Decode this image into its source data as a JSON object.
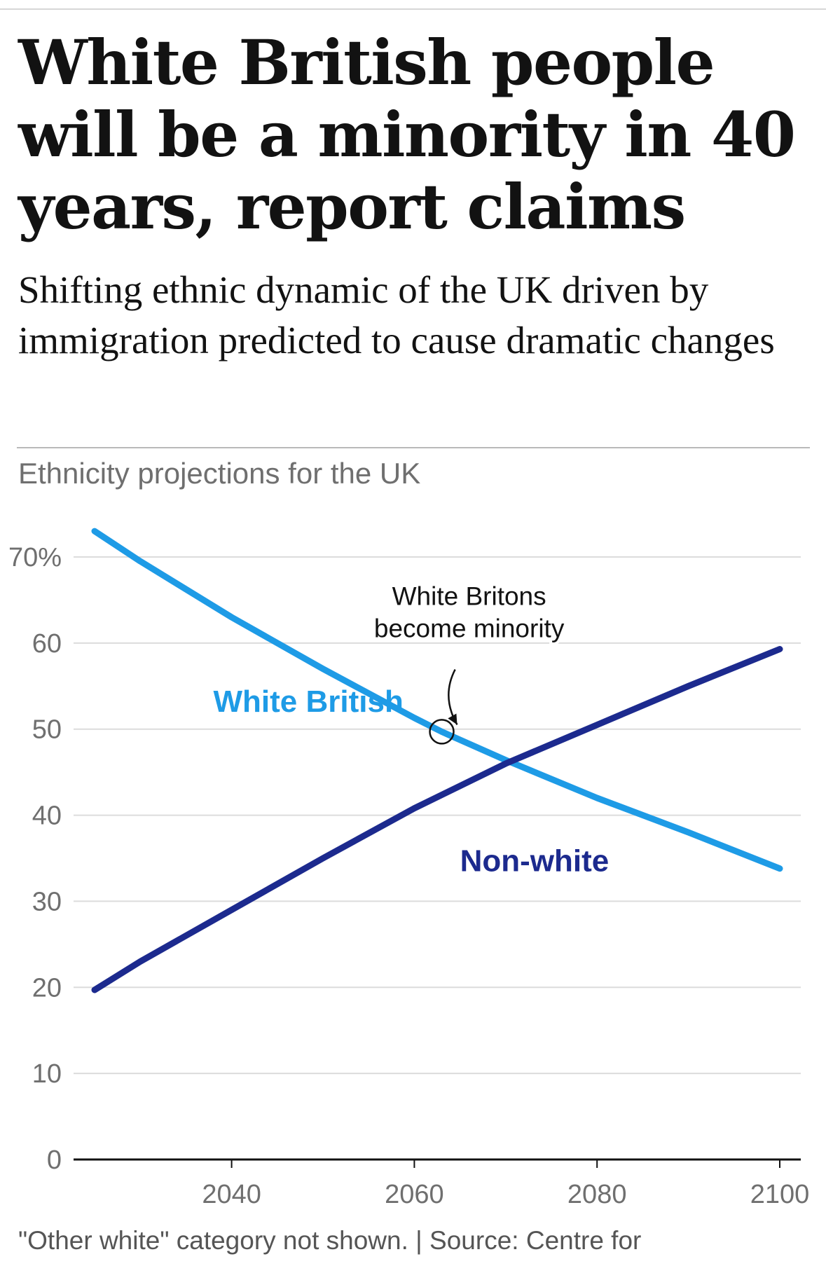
{
  "headline": "White British people will be a minority in 40 years, report claims",
  "standfirst": "Shifting ethnic dynamic of the UK driven by immigration predicted to cause dramatic changes",
  "chart_heading": "Ethnicity projections for the UK",
  "footnote": "\"Other white\" category not shown. | Source: Centre for",
  "chart_data": {
    "type": "line",
    "xlim": [
      2025,
      2100
    ],
    "ylim": [
      0,
      70
    ],
    "grid": true,
    "x_ticks": [
      {
        "value": 2040,
        "label": "2040"
      },
      {
        "value": 2060,
        "label": "2060"
      },
      {
        "value": 2080,
        "label": "2080"
      },
      {
        "value": 2100,
        "label": "2100"
      }
    ],
    "y_ticks": [
      {
        "value": 0,
        "label": "0"
      },
      {
        "value": 10,
        "label": "10"
      },
      {
        "value": 20,
        "label": "20"
      },
      {
        "value": 30,
        "label": "30"
      },
      {
        "value": 40,
        "label": "40"
      },
      {
        "value": 50,
        "label": "50"
      },
      {
        "value": 60,
        "label": "60"
      },
      {
        "value": 70,
        "label": "70%"
      }
    ],
    "series": [
      {
        "name": "White British",
        "color": "#1e9be6",
        "label_at": {
          "x": 2038,
          "y": 52
        },
        "points": [
          {
            "x": 2025,
            "y": 73
          },
          {
            "x": 2030,
            "y": 69.5
          },
          {
            "x": 2040,
            "y": 63
          },
          {
            "x": 2050,
            "y": 57
          },
          {
            "x": 2060,
            "y": 51.3
          },
          {
            "x": 2063,
            "y": 49.7
          },
          {
            "x": 2070,
            "y": 46.4
          },
          {
            "x": 2080,
            "y": 42
          },
          {
            "x": 2090,
            "y": 38
          },
          {
            "x": 2100,
            "y": 33.8
          }
        ]
      },
      {
        "name": "Non-white",
        "color": "#1c2a8e",
        "label_at": {
          "x": 2065,
          "y": 33.5
        },
        "points": [
          {
            "x": 2025,
            "y": 19.7
          },
          {
            "x": 2030,
            "y": 23
          },
          {
            "x": 2040,
            "y": 29
          },
          {
            "x": 2050,
            "y": 35
          },
          {
            "x": 2060,
            "y": 40.8
          },
          {
            "x": 2070,
            "y": 46
          },
          {
            "x": 2080,
            "y": 50.5
          },
          {
            "x": 2090,
            "y": 55
          },
          {
            "x": 2100,
            "y": 59.3
          }
        ]
      }
    ],
    "annotation": {
      "lines": [
        "White Britons",
        "become minority"
      ],
      "marker": {
        "x": 2063,
        "y": 49.7
      },
      "text_anchor_at": {
        "x": 2066,
        "y": 61
      }
    }
  }
}
